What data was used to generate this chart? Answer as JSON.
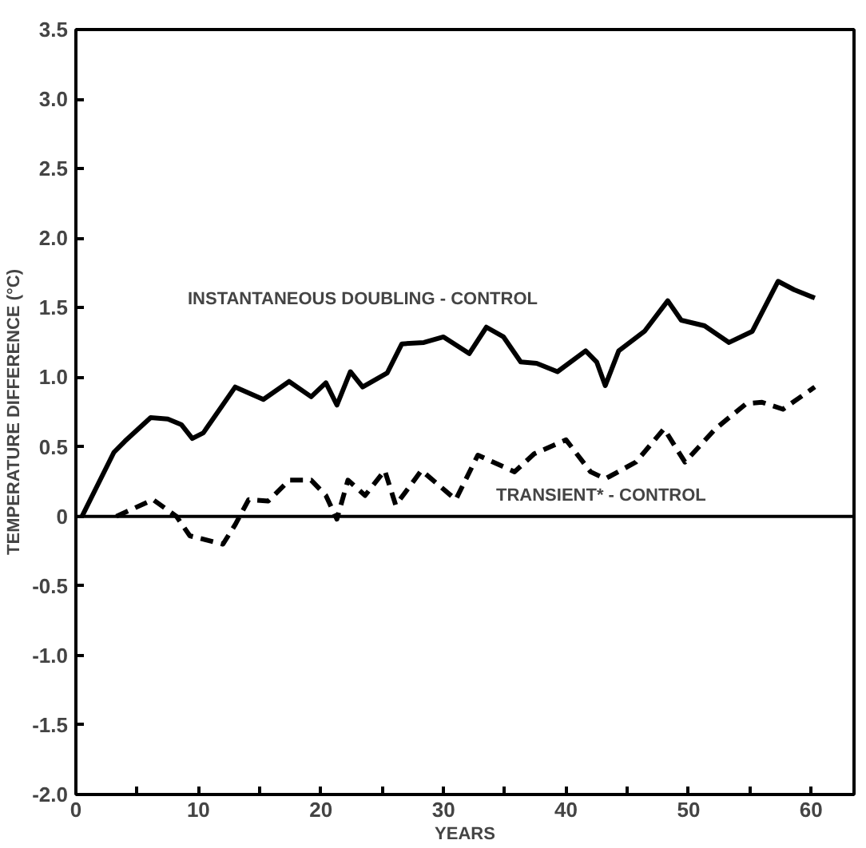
{
  "chart_data": {
    "type": "line",
    "xlabel": "YEARS",
    "ylabel": "TEMPERATURE DIFFERENCE (°C)",
    "xlim": [
      0,
      63.5
    ],
    "ylim": [
      -2.0,
      3.5
    ],
    "xticks": [
      0,
      {
        "value": 5,
        "label": null
      },
      10,
      {
        "value": 15,
        "label": null
      },
      20,
      {
        "value": 25,
        "label": null
      },
      30,
      {
        "value": 35,
        "label": null
      },
      40,
      {
        "value": 45,
        "label": null
      },
      50,
      {
        "value": 55,
        "label": null
      },
      60
    ],
    "yticks": [
      {
        "value": -2.0,
        "label": "-2.0"
      },
      -1.5,
      {
        "value": -1.0,
        "label": "-1.0"
      },
      -0.5,
      0,
      0.5,
      {
        "value": 1.0,
        "label": "1.0"
      },
      1.5,
      {
        "value": 2.0,
        "label": "2.0"
      },
      2.5,
      {
        "value": 3.0,
        "label": "3.0"
      },
      3.5
    ],
    "grid": false,
    "ref_lines": [
      {
        "axis": "y",
        "value": 0,
        "color": "#000000",
        "line_style": "solid"
      }
    ],
    "annotations": [
      "INSTANTANEOUS DOUBLING - CONTROL",
      "TRANSIENT* - CONTROL"
    ],
    "series": [
      {
        "color": "#000000",
        "line_style": "solid",
        "x": [
          0.5,
          3.1,
          4.0,
          6.1,
          7.5,
          8.6,
          9.5,
          10.4,
          13,
          15.3,
          17.4,
          19.2,
          20.4,
          21.3,
          22.4,
          23.4,
          25.4,
          26.6,
          28.4,
          30,
          32.1,
          33.5,
          34.9,
          36.3,
          37.6,
          39.3,
          41.6,
          42.5,
          43.2,
          44.3,
          46.4,
          48.3,
          49.4,
          51.3,
          53.3,
          55.2,
          57.3,
          58.6,
          60.3
        ],
        "values": [
          0,
          0.46,
          0.54,
          0.71,
          0.7,
          0.66,
          0.56,
          0.6,
          0.93,
          0.84,
          0.97,
          0.86,
          0.96,
          0.8,
          1.04,
          0.93,
          1.03,
          1.24,
          1.25,
          1.29,
          1.17,
          1.36,
          1.29,
          1.11,
          1.1,
          1.04,
          1.19,
          1.11,
          0.94,
          1.19,
          1.33,
          1.55,
          1.41,
          1.37,
          1.25,
          1.33,
          1.69,
          1.63,
          1.57
        ]
      },
      {
        "color": "#000000",
        "line_style": "dashed",
        "x": [
          3.3,
          6.3,
          8.2,
          9.3,
          12,
          13,
          14.1,
          15.7,
          17.4,
          19.2,
          20.4,
          21.3,
          22.2,
          23.6,
          25.2,
          26.1,
          28.2,
          31,
          32.8,
          35.8,
          37.4,
          40,
          42,
          43.2,
          45.7,
          48,
          49.7,
          52.2,
          54.7,
          56,
          57.7,
          60.3
        ],
        "values": [
          0,
          0.12,
          0.0,
          -0.14,
          -0.2,
          -0.06,
          0.12,
          0.11,
          0.26,
          0.26,
          0.15,
          -0.02,
          0.26,
          0.15,
          0.33,
          0.08,
          0.33,
          0.12,
          0.44,
          0.32,
          0.45,
          0.55,
          0.32,
          0.27,
          0.39,
          0.63,
          0.39,
          0.63,
          0.81,
          0.82,
          0.77,
          0.93
        ]
      }
    ]
  }
}
